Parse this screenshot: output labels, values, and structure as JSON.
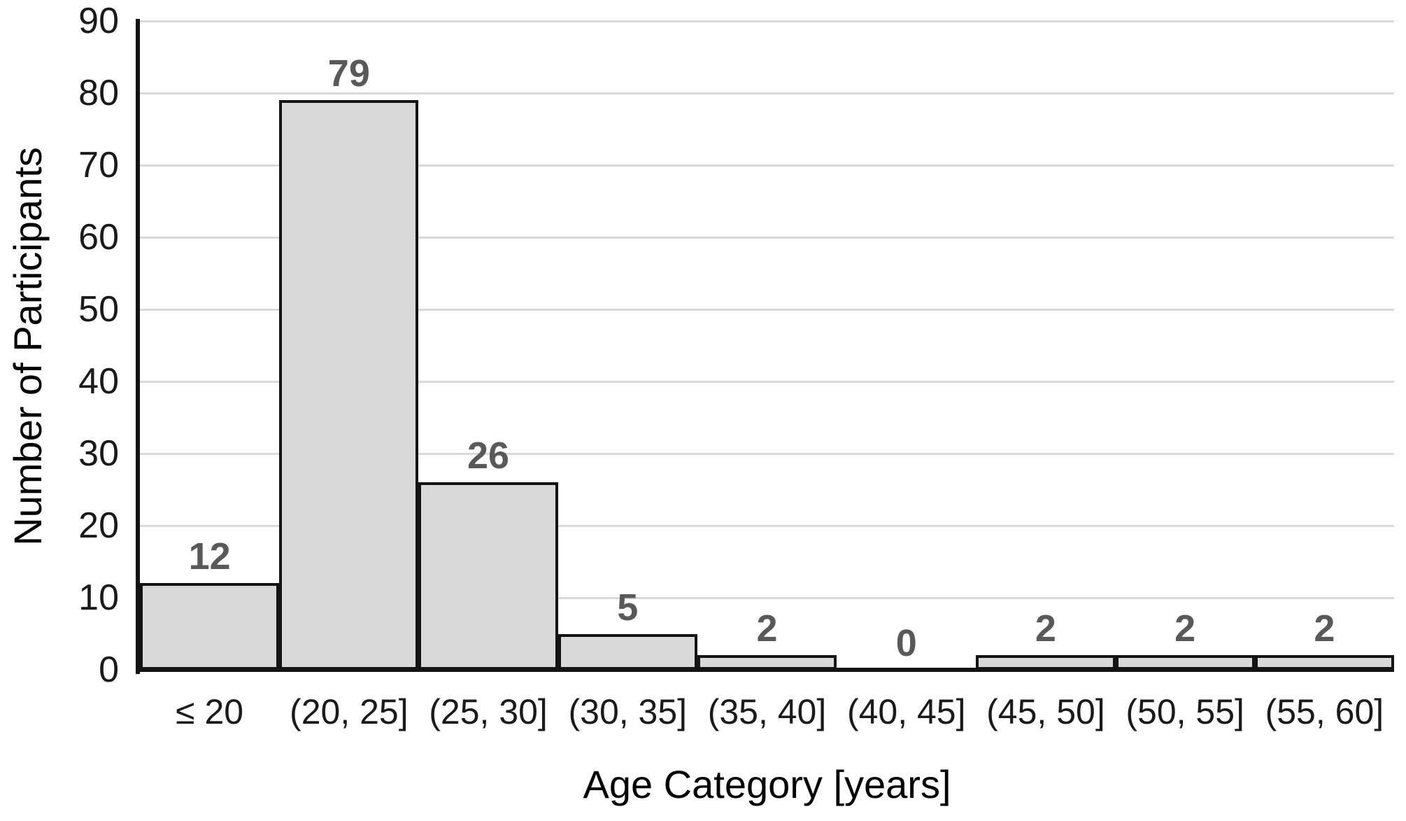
{
  "chart_data": {
    "type": "bar",
    "title": "",
    "categories": [
      "≤ 20",
      "(20, 25]",
      "(25, 30]",
      "(30, 35]",
      "(35, 40]",
      "(40, 45]",
      "(45, 50]",
      "(50, 55]",
      "(55, 60]"
    ],
    "values": [
      12,
      79,
      26,
      5,
      2,
      0,
      2,
      2,
      2
    ],
    "data_labels": [
      "12",
      "79",
      "26",
      "5",
      "2",
      "0",
      "2",
      "2",
      "2"
    ],
    "xlabel": "Age Category [years]",
    "ylabel": "Number of Participants",
    "ylim": [
      0,
      90
    ],
    "yticks": [
      0,
      10,
      20,
      30,
      40,
      50,
      60,
      70,
      80,
      90
    ],
    "grid": "horizontal",
    "legend_position": "none",
    "bar_gap": 0
  },
  "colors": {
    "background": "#ffffff",
    "bar_fill": "#d9d9d9",
    "bar_border": "#141414",
    "gridline": "#d9d9d9",
    "axis_line": "#141414",
    "data_label": "#595959",
    "tick_label": "#1a1a1a",
    "title_color": "#000000"
  }
}
